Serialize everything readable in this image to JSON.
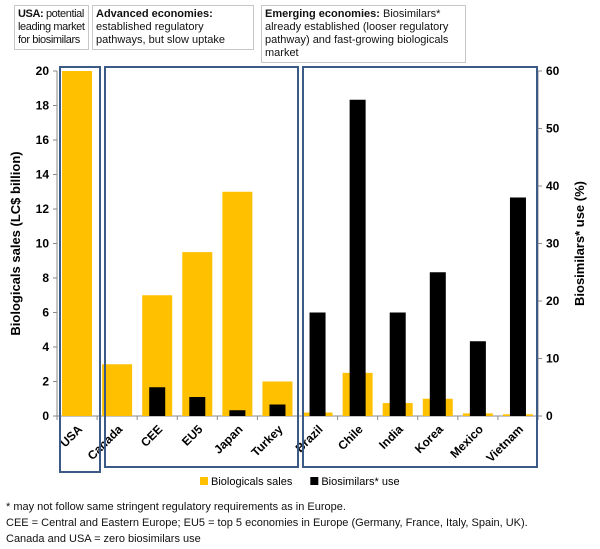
{
  "notes": [
    {
      "bold": "USA:",
      "text": " potential leading market for biosimilars"
    },
    {
      "bold": "Advanced economies:",
      "text": " established regulatory pathways, but slow uptake"
    },
    {
      "bold": "Emerging economies:",
      "text": " Biosimilars* already established (looser regulatory pathway) and fast-growing biologicals market"
    }
  ],
  "chart_data": {
    "type": "bar",
    "categories": [
      "USA",
      "Canada",
      "CEE",
      "EU5",
      "Japan",
      "Turkey",
      "Brazil",
      "Chile",
      "India",
      "Korea",
      "Mexico",
      "Vietnam"
    ],
    "series": [
      {
        "name": "Biologicals sales",
        "axis": "left",
        "color": "#FFC000",
        "values": [
          20,
          3,
          7,
          9.5,
          13,
          2,
          0.2,
          2.5,
          0.75,
          1.0,
          0.15,
          0.1
        ]
      },
      {
        "name": "Biosimilars* use",
        "axis": "right",
        "color": "#000000",
        "values": [
          0,
          0,
          5,
          3.3,
          1,
          2,
          18,
          55,
          18,
          25,
          13,
          38
        ]
      }
    ],
    "ylabel": "Biologicals sales (LC$ billion)",
    "ylim": [
      0,
      20
    ],
    "yticks": [
      "0",
      "2",
      "4",
      "6",
      "8",
      "10",
      "12",
      "14",
      "16",
      "18",
      "20"
    ],
    "y2label": "Biosimilars* use (%)",
    "y2lim": [
      0,
      60
    ],
    "y2ticks": [
      "0",
      "10",
      "20",
      "30",
      "40",
      "50",
      "60"
    ],
    "grid": false,
    "legend": "bottom",
    "group_box_color": "#3B5A85"
  },
  "footnotes": [
    "* may not follow same stringent regulatory requirements as in Europe.",
    "CEE = Central and Eastern Europe; EU5 = top 5 economies in Europe (Germany, France, Italy, Spain, UK).",
    "Canada and USA = zero biosimilars use"
  ]
}
